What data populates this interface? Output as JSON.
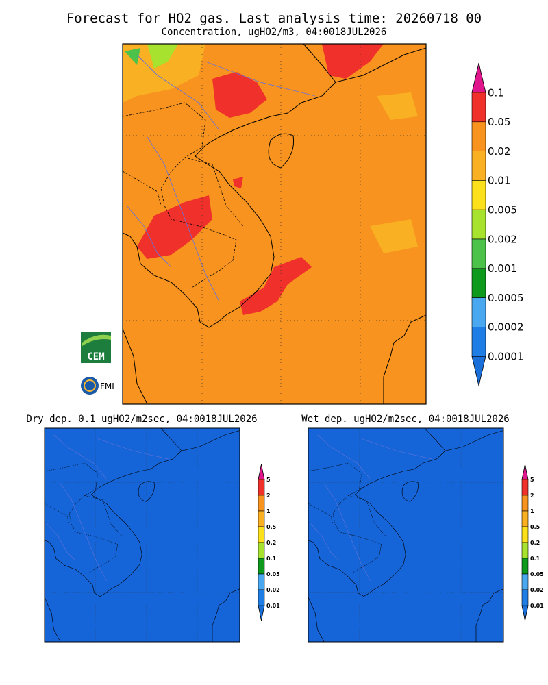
{
  "header": {
    "title": "Forecast for HO2 gas. Last analysis time: 20260718 00",
    "subtitle": "Concentration, ugHO2/m3, 04:0018JUL2026"
  },
  "main_colorbar": {
    "labels": [
      "0.1",
      "0.05",
      "0.02",
      "0.01",
      "0.005",
      "0.002",
      "0.001",
      "0.0005",
      "0.0002",
      "0.0001"
    ],
    "colors": [
      "#f0302a",
      "#f7931e",
      "#f9b022",
      "#fde01c",
      "#a6e22e",
      "#4cc24a",
      "#0d9a1c",
      "#4aa8f0",
      "#1e7ee6"
    ],
    "over_color": "#e0168c",
    "under_color": "#1a6fd8"
  },
  "panels": [
    {
      "title": "Dry dep. 0.1 ugHO2/m2sec, 04:0018JUL2026"
    },
    {
      "title": "Wet dep. ugHO2/m2sec, 04:0018JUL2026"
    }
  ],
  "small_colorbar": {
    "labels": [
      "5",
      "2",
      "1",
      "0.5",
      "0.2",
      "0.1",
      "0.05",
      "0.02",
      "0.01"
    ],
    "colors": [
      "#f0302a",
      "#f7931e",
      "#f9b022",
      "#fde01c",
      "#a6e22e",
      "#0d9a1c",
      "#4aa8f0",
      "#1e7ee6"
    ],
    "over_color": "#e0168c",
    "under_color": "#1a6fd8"
  },
  "logos": {
    "cem": "CEM",
    "fmi": "FMI"
  }
}
